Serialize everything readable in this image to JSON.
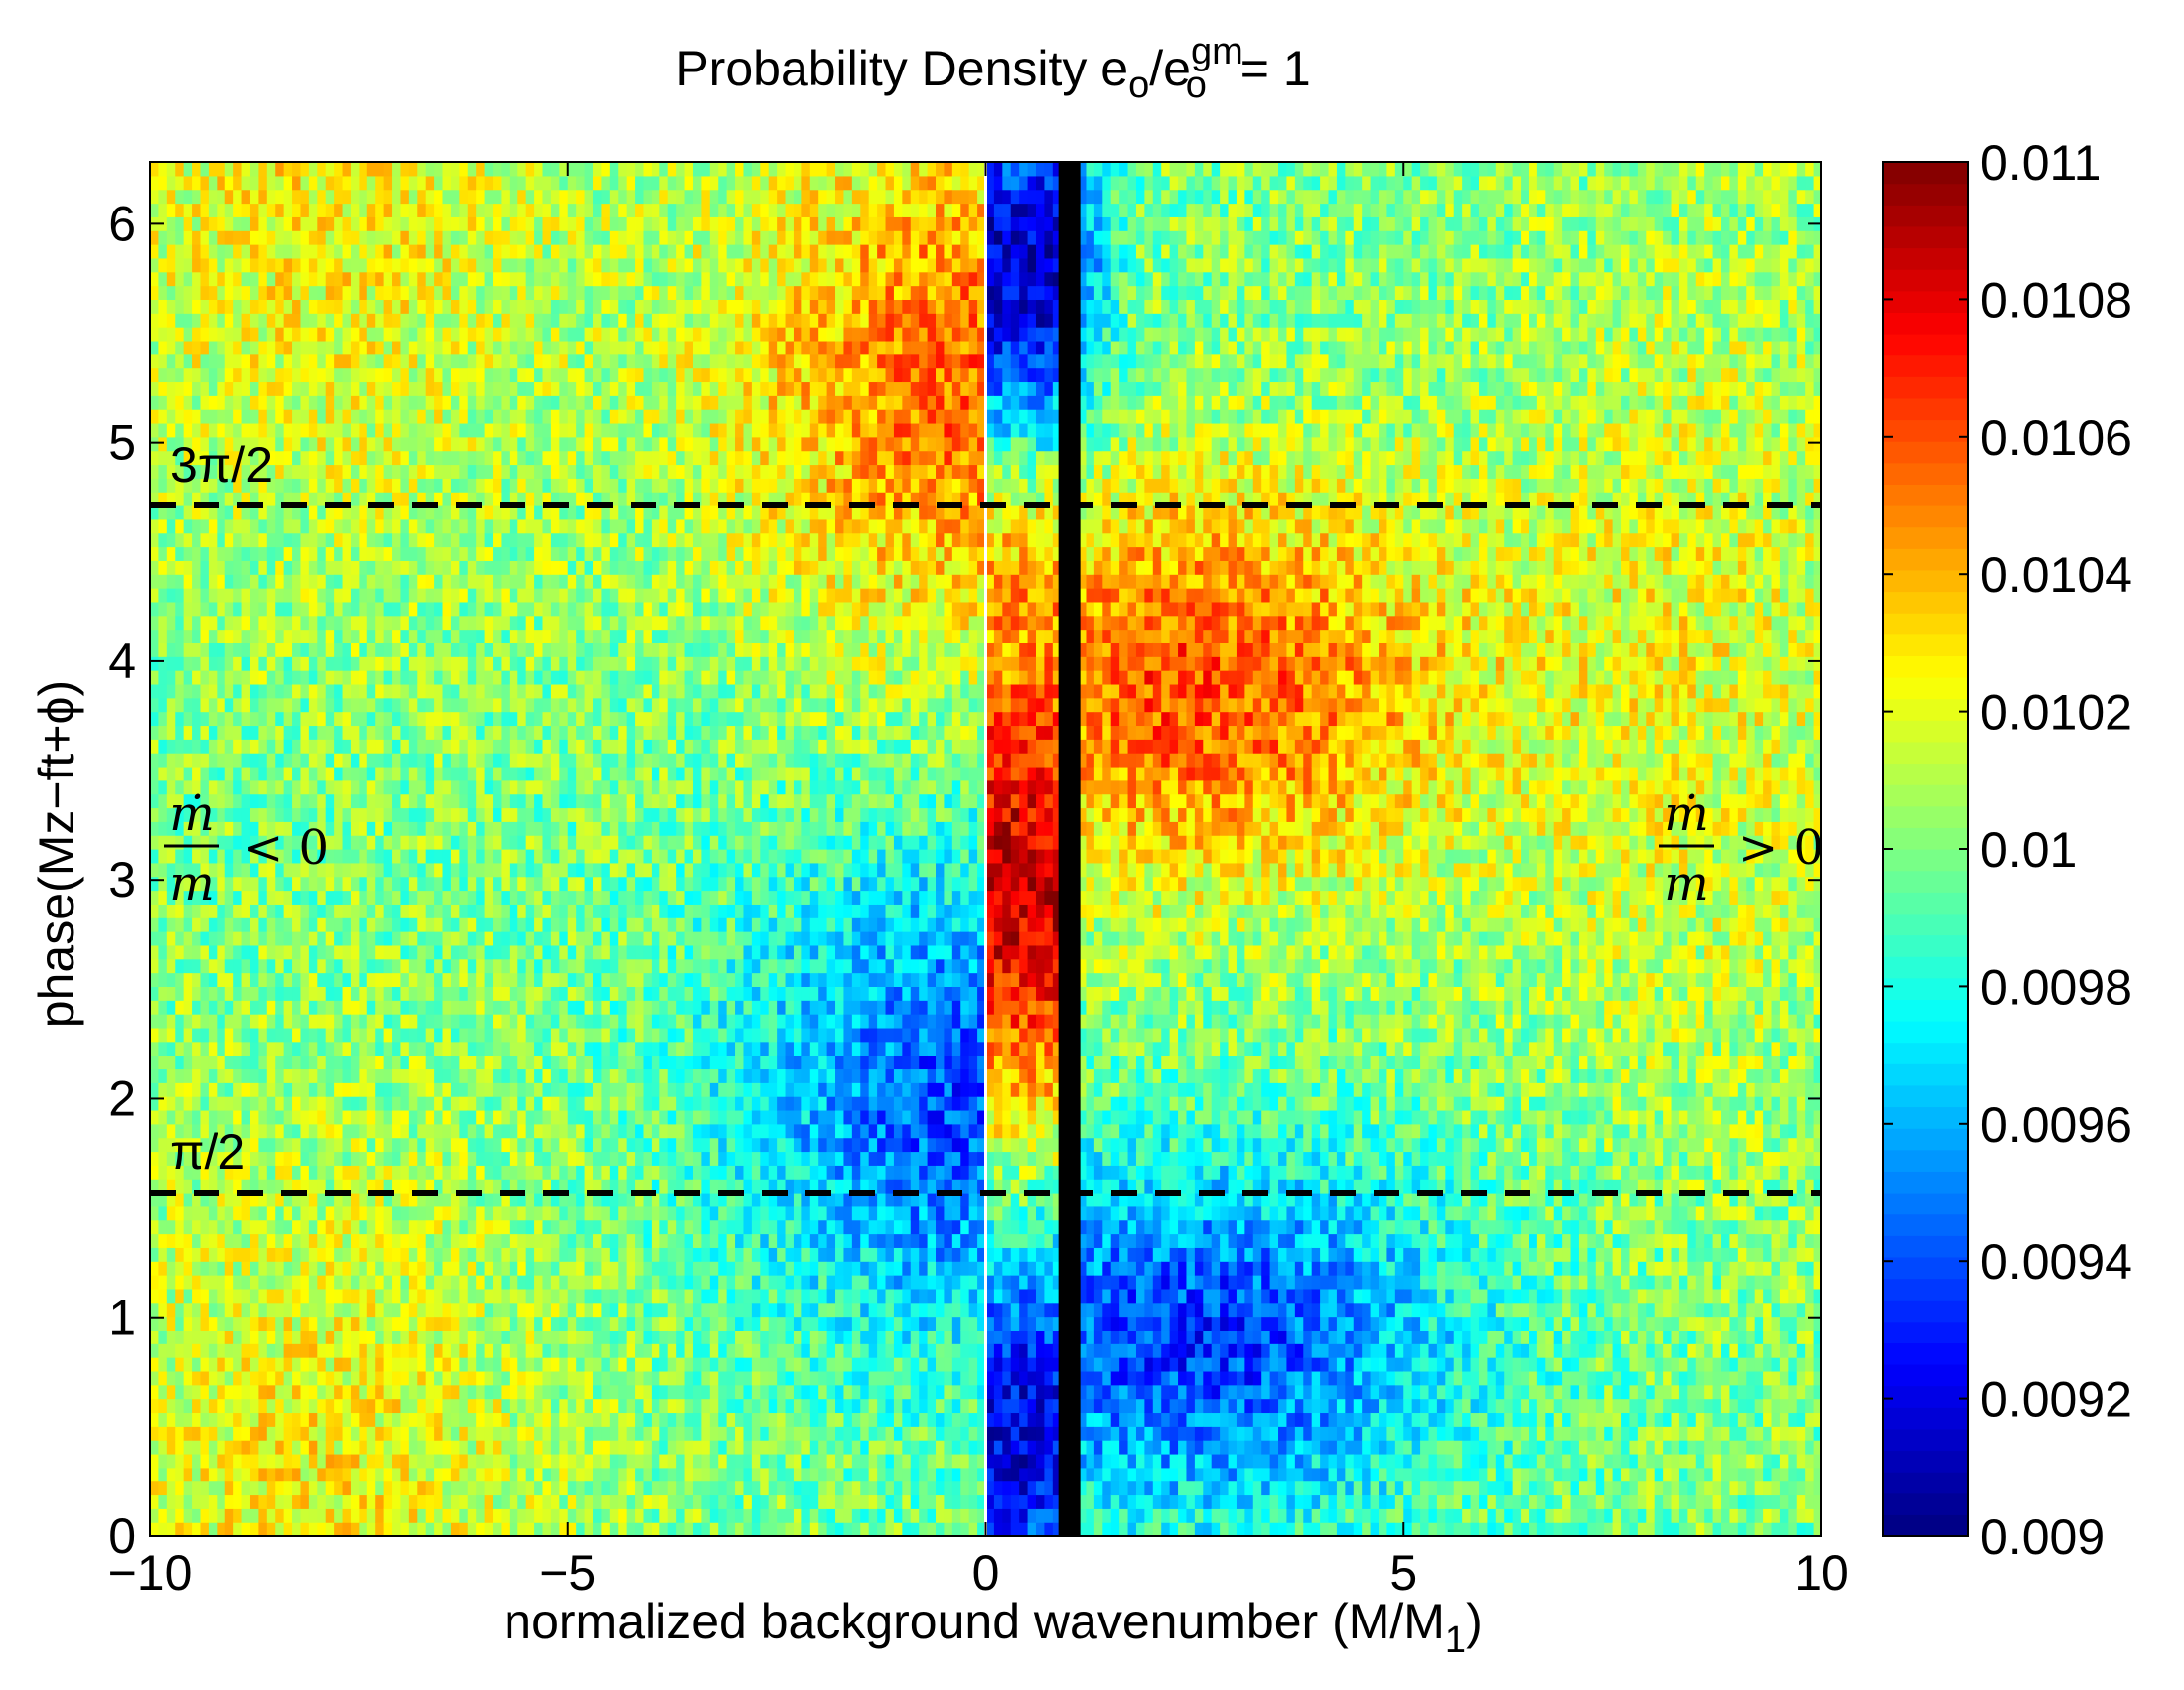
{
  "chart_data": {
    "type": "heatmap",
    "title": "Probability Density e",
    "title_sub1": "o",
    "title_mid": "/e",
    "title_sup": "gm",
    "title_sub2": "o",
    "title_end": " = 1",
    "xlabel": "normalized background wavenumber (M/M",
    "xlabel_sub": "1",
    "xlabel_end": ")",
    "ylabel": "phase(Mz−ft+ϕ)",
    "xlim": [
      -10,
      10
    ],
    "ylim": [
      0,
      6.2832
    ],
    "xticks": [
      -10,
      -5,
      0,
      5,
      10
    ],
    "xtick_labels": [
      "−10",
      "−5",
      "0",
      "5",
      "10"
    ],
    "yticks": [
      0,
      1,
      2,
      3,
      4,
      5,
      6
    ],
    "ytick_labels": [
      "0",
      "1",
      "2",
      "3",
      "4",
      "5",
      "6"
    ],
    "colormap": "jet",
    "clim": [
      0.009,
      0.011
    ],
    "colorbar_ticks": [
      0.009,
      0.0092,
      0.0094,
      0.0096,
      0.0098,
      0.01,
      0.0102,
      0.0104,
      0.0106,
      0.0108,
      0.011
    ],
    "colorbar_labels": [
      "0.009",
      "0.0092",
      "0.0094",
      "0.0096",
      "0.0098",
      "0.01",
      "0.0102",
      "0.0104",
      "0.0106",
      "0.0108",
      "0.011"
    ],
    "grid": false,
    "hlines": [
      {
        "y": 1.5708,
        "style": "dashed",
        "color": "#000000",
        "label": "π/2"
      },
      {
        "y": 4.7124,
        "style": "dashed",
        "color": "#000000",
        "label": "3π/2"
      }
    ],
    "vlines": [
      {
        "x": 0,
        "color": "#ffffff",
        "style": "solid"
      },
      {
        "x": 1,
        "color": "#000000",
        "style": "solid-thick"
      }
    ],
    "annotations": [
      {
        "region": "left",
        "numerator": "ṁ",
        "denominator": "m",
        "relation": "< 0"
      },
      {
        "region": "right",
        "numerator": "ṁ",
        "denominator": "m",
        "relation": "> 0"
      }
    ],
    "field_description": {
      "baseline": 0.01,
      "features": [
        {
          "name": "high band left",
          "x_range": [
            -3,
            0
          ],
          "y_range": [
            4.2,
            6.28
          ],
          "value": 0.0106
        },
        {
          "name": "low band left",
          "x_range": [
            -3,
            0
          ],
          "y_range": [
            0.8,
            3.2
          ],
          "value": 0.0094
        },
        {
          "name": "high core right",
          "x_range": [
            0,
            1
          ],
          "y_range": [
            1.6,
            4.7
          ],
          "value": 0.0108
        },
        {
          "name": "high lobe right",
          "x_range": [
            1,
            6
          ],
          "y_range": [
            3.0,
            5.0
          ],
          "value": 0.0105
        },
        {
          "name": "low strip right",
          "x_range": [
            0,
            1
          ],
          "y_range": [
            4.8,
            6.28
          ],
          "value": 0.0092
        },
        {
          "name": "low lobe right",
          "x_range": [
            1,
            5
          ],
          "y_range": [
            0,
            1.6
          ],
          "value": 0.0094
        }
      ]
    }
  }
}
